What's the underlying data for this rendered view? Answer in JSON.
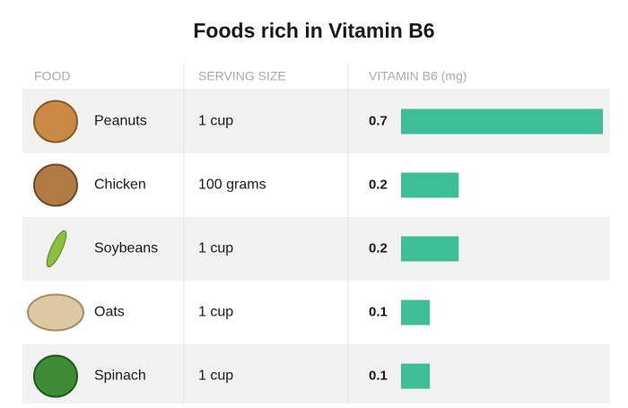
{
  "chart_data": {
    "type": "bar",
    "title": "Foods rich in Vitamin B6",
    "columns": [
      "FOOD",
      "SERVING SIZE",
      "VITAMIN B6 (mg)"
    ],
    "categories": [
      "Peanuts",
      "Chicken",
      "Soybeans",
      "Oats",
      "Spinach"
    ],
    "serving_sizes": [
      "1 cup",
      "100 grams",
      "1 cup",
      "1 cup",
      "1 cup"
    ],
    "values": [
      0.7,
      0.2,
      0.2,
      0.1,
      0.1
    ],
    "color": "#3dbe96"
  }
}
